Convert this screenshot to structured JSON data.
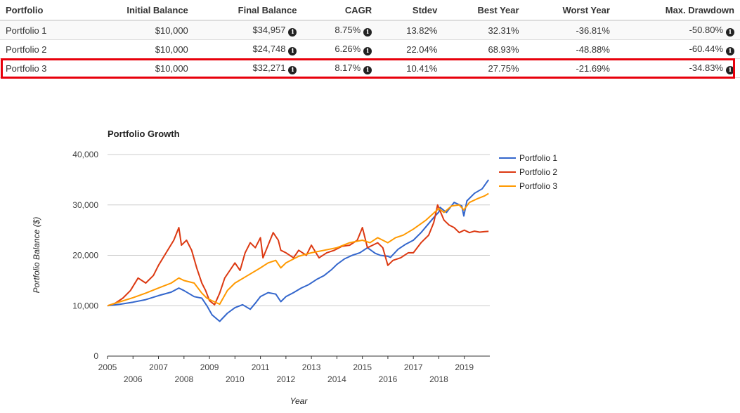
{
  "table": {
    "headers": [
      "Portfolio",
      "Initial Balance",
      "Final Balance",
      "CAGR",
      "Stdev",
      "Best Year",
      "Worst Year",
      "Max. Drawdown"
    ],
    "rows": [
      {
        "name": "Portfolio 1",
        "initial": "$10,000",
        "final": "$34,957",
        "cagr": "8.75%",
        "stdev": "13.82%",
        "best": "32.31%",
        "worst": "-36.81%",
        "maxdd": "-50.80%"
      },
      {
        "name": "Portfolio 2",
        "initial": "$10,000",
        "final": "$24,748",
        "cagr": "6.26%",
        "stdev": "22.04%",
        "best": "68.93%",
        "worst": "-48.88%",
        "maxdd": "-60.44%"
      },
      {
        "name": "Portfolio 3",
        "initial": "$10,000",
        "final": "$32,271",
        "cagr": "8.17%",
        "stdev": "10.41%",
        "best": "27.75%",
        "worst": "-21.69%",
        "maxdd": "-34.83%"
      }
    ],
    "highlighted_row": 2,
    "info_icon": "info-circle-icon"
  },
  "chart_data": {
    "type": "line",
    "title": "Portfolio Growth",
    "xlabel": "Year",
    "ylabel": "Portfolio Balance ($)",
    "xlim": [
      2005,
      2020
    ],
    "ylim": [
      0,
      40000
    ],
    "y_ticks": [
      0,
      10000,
      20000,
      30000,
      40000
    ],
    "y_tick_labels": [
      "0",
      "10,000",
      "20,000",
      "30,000",
      "40,000"
    ],
    "x_ticks": [
      2005,
      2006,
      2007,
      2008,
      2009,
      2010,
      2011,
      2012,
      2013,
      2014,
      2015,
      2016,
      2017,
      2018,
      2019
    ],
    "x_tick_labels": [
      "2005",
      "2006",
      "2007",
      "2008",
      "2009",
      "2010",
      "2011",
      "2012",
      "2013",
      "2014",
      "2015",
      "2016",
      "2017",
      "2018",
      "2019"
    ],
    "grid": true,
    "legend_position": "right",
    "series": [
      {
        "name": "Portfolio 1",
        "color": "#3366cc",
        "x": [
          2005,
          2005.5,
          2006,
          2006.5,
          2007,
          2007.5,
          2007.8,
          2008,
          2008.4,
          2008.7,
          2008.9,
          2009.1,
          2009.4,
          2009.7,
          2010,
          2010.3,
          2010.6,
          2010.8,
          2011,
          2011.3,
          2011.6,
          2011.8,
          2012,
          2012.3,
          2012.6,
          2012.9,
          2013.2,
          2013.5,
          2013.8,
          2014,
          2014.3,
          2014.6,
          2014.9,
          2015.2,
          2015.5,
          2015.7,
          2016,
          2016.1,
          2016.4,
          2016.7,
          2017,
          2017.3,
          2017.6,
          2017.8,
          2018,
          2018.05,
          2018.3,
          2018.6,
          2018.9,
          2018.98,
          2019.1,
          2019.4,
          2019.7,
          2019.95
        ],
        "values": [
          10000,
          10300,
          10700,
          11200,
          12000,
          12700,
          13500,
          13000,
          11800,
          11500,
          10000,
          8200,
          6900,
          8500,
          9600,
          10200,
          9300,
          10500,
          11800,
          12600,
          12300,
          10800,
          11800,
          12600,
          13500,
          14200,
          15200,
          16000,
          17200,
          18200,
          19300,
          20000,
          20500,
          21500,
          20400,
          20000,
          19800,
          19600,
          21200,
          22200,
          23000,
          24500,
          26300,
          27500,
          28600,
          29500,
          28500,
          30500,
          29800,
          27800,
          30800,
          32300,
          33200,
          35000
        ]
      },
      {
        "name": "Portfolio 2",
        "color": "#dc3912",
        "x": [
          2005,
          2005.3,
          2005.6,
          2005.9,
          2006.2,
          2006.5,
          2006.8,
          2007,
          2007.3,
          2007.6,
          2007.8,
          2007.9,
          2008.1,
          2008.3,
          2008.5,
          2008.7,
          2008.85,
          2009,
          2009.2,
          2009.4,
          2009.6,
          2009.8,
          2010,
          2010.2,
          2010.4,
          2010.6,
          2010.8,
          2011,
          2011.1,
          2011.3,
          2011.5,
          2011.7,
          2011.8,
          2012,
          2012.3,
          2012.5,
          2012.8,
          2013,
          2013.3,
          2013.6,
          2013.9,
          2014.2,
          2014.5,
          2014.8,
          2015,
          2015.2,
          2015.4,
          2015.6,
          2015.8,
          2016,
          2016.2,
          2016.5,
          2016.8,
          2017,
          2017.3,
          2017.6,
          2017.8,
          2017.95,
          2018.2,
          2018.4,
          2018.6,
          2018.8,
          2019,
          2019.2,
          2019.4,
          2019.6,
          2019.8,
          2019.95
        ],
        "values": [
          10000,
          10500,
          11500,
          13000,
          15500,
          14500,
          16000,
          18000,
          20500,
          23000,
          25500,
          22000,
          23000,
          21000,
          17500,
          14500,
          13000,
          11000,
          10200,
          12500,
          15500,
          17000,
          18500,
          17000,
          20500,
          22500,
          21500,
          23500,
          19500,
          22000,
          24500,
          23000,
          21000,
          20500,
          19500,
          21000,
          20000,
          22000,
          19500,
          20500,
          21000,
          21800,
          22000,
          23000,
          25500,
          21500,
          22000,
          22500,
          21500,
          18000,
          19000,
          19500,
          20500,
          20500,
          22500,
          24000,
          26500,
          30000,
          27000,
          26000,
          25500,
          24500,
          25000,
          24500,
          24800,
          24600,
          24700,
          24748
        ]
      },
      {
        "name": "Portfolio 3",
        "color": "#ff9900",
        "x": [
          2005,
          2005.5,
          2006,
          2006.5,
          2007,
          2007.5,
          2007.8,
          2008,
          2008.4,
          2008.7,
          2008.9,
          2009.1,
          2009.4,
          2009.7,
          2010,
          2010.5,
          2011,
          2011.3,
          2011.6,
          2011.8,
          2012,
          2012.5,
          2013,
          2013.5,
          2014,
          2014.5,
          2015,
          2015.3,
          2015.6,
          2016,
          2016.3,
          2016.6,
          2017,
          2017.5,
          2018,
          2018.2,
          2018.5,
          2018.8,
          2018.98,
          2019.2,
          2019.5,
          2019.8,
          2019.95
        ],
        "values": [
          10000,
          10800,
          11600,
          12500,
          13500,
          14500,
          15500,
          15000,
          14500,
          12500,
          11500,
          11000,
          10300,
          13000,
          14500,
          16000,
          17500,
          18500,
          19000,
          17500,
          18500,
          19800,
          20500,
          21000,
          21500,
          22500,
          23000,
          22500,
          23500,
          22500,
          23500,
          24000,
          25200,
          27000,
          29300,
          28500,
          29800,
          30000,
          29000,
          30500,
          31200,
          31800,
          32271
        ]
      }
    ]
  }
}
